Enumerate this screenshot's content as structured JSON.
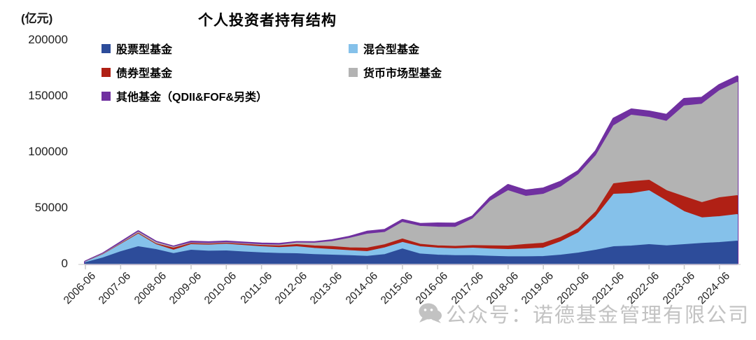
{
  "header": {
    "unit_label": "(亿元)",
    "title": "个人投资者持有结构"
  },
  "watermark": {
    "icon": "wechat-icon",
    "text": "公众号：诺德基金管理有限公司",
    "color": "#bfbfbf"
  },
  "chart_data": {
    "type": "area",
    "stacked": true,
    "title": "个人投资者持有结构",
    "unit": "亿元",
    "grid": false,
    "legend_position": "top",
    "ylim": [
      0,
      200000
    ],
    "y_ticks": [
      0,
      50000,
      100000,
      150000,
      200000
    ],
    "x": [
      "2006-06",
      "2006-12",
      "2007-06",
      "2007-12",
      "2008-06",
      "2008-12",
      "2009-06",
      "2009-12",
      "2010-06",
      "2010-12",
      "2011-06",
      "2011-12",
      "2012-06",
      "2012-12",
      "2013-06",
      "2013-12",
      "2014-06",
      "2014-12",
      "2015-06",
      "2015-12",
      "2016-06",
      "2016-12",
      "2017-06",
      "2017-12",
      "2018-06",
      "2018-12",
      "2019-06",
      "2019-12",
      "2020-06",
      "2020-12",
      "2021-06",
      "2021-12",
      "2022-06",
      "2022-12",
      "2023-06",
      "2023-12",
      "2024-06",
      "2024-12"
    ],
    "x_tick_labels": [
      "2006-06",
      "2007-06",
      "2008-06",
      "2009-06",
      "2010-06",
      "2011-06",
      "2012-06",
      "2013-06",
      "2014-06",
      "2015-06",
      "2016-06",
      "2017-06",
      "2018-06",
      "2019-06",
      "2020-06",
      "2021-06",
      "2022-06",
      "2023-06",
      "2024-06"
    ],
    "series": [
      {
        "name": "股票型基金",
        "color": "#2d4c9a",
        "values": [
          800,
          5000,
          10500,
          15000,
          12500,
          8800,
          11900,
          11000,
          11250,
          10300,
          9500,
          9000,
          8750,
          8000,
          7500,
          7000,
          6400,
          8000,
          13000,
          8500,
          7500,
          7000,
          7000,
          6500,
          6000,
          6000,
          6250,
          7500,
          9375,
          12000,
          15000,
          15625,
          16875,
          15800,
          16875,
          18000,
          18750,
          20000
        ]
      },
      {
        "name": "混合型基金",
        "color": "#85c1ea",
        "values": [
          500,
          3000,
          6500,
          11250,
          4375,
          3075,
          5000,
          5500,
          6000,
          5800,
          5500,
          5200,
          6250,
          5500,
          5000,
          4500,
          4200,
          6000,
          5800,
          6500,
          6250,
          6200,
          6750,
          6500,
          6500,
          7000,
          7500,
          12000,
          18125,
          30000,
          46875,
          46875,
          48125,
          39825,
          29375,
          22800,
          23125,
          23750
        ]
      },
      {
        "name": "债券型基金",
        "color": "#b02015",
        "values": [
          100,
          300,
          500,
          800,
          800,
          1875,
          1000,
          900,
          900,
          1000,
          1200,
          1500,
          1875,
          2200,
          2700,
          2500,
          3150,
          2800,
          3100,
          2200,
          2050,
          2100,
          2250,
          2800,
          3125,
          4000,
          4375,
          4000,
          3750,
          4500,
          9375,
          10625,
          9375,
          9375,
          13350,
          13575,
          16875,
          16875
        ]
      },
      {
        "name": "货币市场型基金",
        "color": "#b3b3b3",
        "values": [
          100,
          300,
          500,
          1000,
          1200,
          800,
          500,
          500,
          400,
          500,
          600,
          800,
          1500,
          2500,
          4400,
          8500,
          12500,
          11000,
          14875,
          16000,
          16700,
          17000,
          24000,
          40000,
          49375,
          43000,
          43750,
          45000,
          48125,
          50000,
          51875,
          59375,
          56250,
          62000,
          81200,
          88000,
          95625,
          101250
        ]
      },
      {
        "name": "其他基金（QDII&FOF&另类）",
        "color": "#7030a0",
        "values": [
          100,
          200,
          700,
          550,
          500,
          450,
          900,
          900,
          900,
          900,
          900,
          900,
          600,
          700,
          1000,
          1200,
          2000,
          2000,
          2000,
          2000,
          3125,
          3200,
          2000,
          3000,
          5000,
          5000,
          5000,
          4500,
          3125,
          4000,
          6250,
          5000,
          5000,
          5600,
          6075,
          5500,
          5000,
          5000
        ]
      }
    ]
  }
}
